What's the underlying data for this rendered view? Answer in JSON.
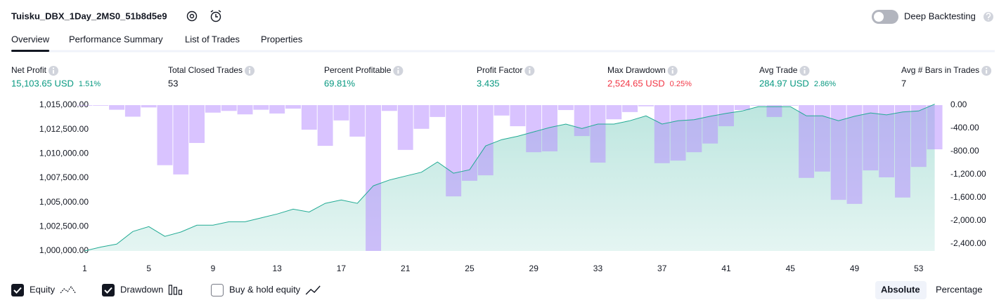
{
  "header": {
    "title": "Tuisku_DBX_1Day_2MS0_51b8d5e9",
    "deep_backtesting": {
      "label": "Deep Backtesting",
      "on": false
    }
  },
  "tabs": {
    "items": [
      "Overview",
      "Performance Summary",
      "List of Trades",
      "Properties"
    ],
    "selected": 0
  },
  "metrics": [
    {
      "label": "Net Profit",
      "value": "15,103.65 USD",
      "percent": "1.51%",
      "tone": "positive"
    },
    {
      "label": "Total Closed Trades",
      "value": "53",
      "tone": "neutral"
    },
    {
      "label": "Percent Profitable",
      "value": "69.81%",
      "tone": "positive"
    },
    {
      "label": "Profit Factor",
      "value": "3.435",
      "tone": "positive"
    },
    {
      "label": "Max Drawdown",
      "value": "2,524.65 USD",
      "percent": "0.25%",
      "tone": "negative"
    },
    {
      "label": "Avg Trade",
      "value": "284.97 USD",
      "percent": "2.86%",
      "tone": "positive"
    },
    {
      "label": "Avg # Bars in Trades",
      "value": "7",
      "tone": "neutral"
    }
  ],
  "chart_data": {
    "type": "equity_drawdown",
    "x": [
      1,
      2,
      3,
      4,
      5,
      6,
      7,
      8,
      9,
      10,
      11,
      12,
      13,
      14,
      15,
      16,
      17,
      18,
      19,
      20,
      21,
      22,
      23,
      24,
      25,
      26,
      27,
      28,
      29,
      30,
      31,
      32,
      33,
      34,
      35,
      36,
      37,
      38,
      39,
      40,
      41,
      42,
      43,
      44,
      45,
      46,
      47,
      48,
      49,
      50,
      51,
      52,
      53,
      54
    ],
    "xlim": [
      0.5,
      54.5
    ],
    "xticks": [
      1,
      5,
      9,
      13,
      17,
      21,
      25,
      29,
      33,
      37,
      41,
      45,
      49,
      53
    ],
    "ylim": [
      1000000,
      1015000
    ],
    "yticks": [
      {
        "value": 1000000,
        "label": "1,000,000.00"
      },
      {
        "value": 1002500,
        "label": "1,002,500.00"
      },
      {
        "value": 1005000,
        "label": "1,005,000.00"
      },
      {
        "value": 1007500,
        "label": "1,007,500.00"
      },
      {
        "value": 1010000,
        "label": "1,010,000.00"
      },
      {
        "value": 1012500,
        "label": "1,012,500.00"
      },
      {
        "value": 1015000,
        "label": "1,015,000.00"
      }
    ],
    "y2lim": [
      -2524.65,
      0
    ],
    "y2ticks": [
      {
        "value": 0,
        "label": "0.00"
      },
      {
        "value": -400,
        "label": "-400.00"
      },
      {
        "value": -800,
        "label": "-800.00"
      },
      {
        "value": -1200,
        "label": "-1,200.00"
      },
      {
        "value": -1600,
        "label": "-1,600.00"
      },
      {
        "value": -2000,
        "label": "-2,000.00"
      },
      {
        "value": -2400,
        "label": "-2,400.00"
      }
    ],
    "grid": false,
    "series": [
      {
        "name": "Equity",
        "type": "area",
        "color": "#22ab94",
        "checked": true,
        "values": [
          1000000,
          1000400,
          1000700,
          1002000,
          1002500,
          1001500,
          1001950,
          1002650,
          1002650,
          1003000,
          1003000,
          1003400,
          1003800,
          1004300,
          1004000,
          1004900,
          1005250,
          1004900,
          1006700,
          1007300,
          1007700,
          1008100,
          1009150,
          1008000,
          1008350,
          1010800,
          1011450,
          1011800,
          1012250,
          1012700,
          1013050,
          1012600,
          1013050,
          1013050,
          1013400,
          1013900,
          1013050,
          1013400,
          1013500,
          1013850,
          1014150,
          1014400,
          1014850,
          1014850,
          1014850,
          1013900,
          1013900,
          1013400,
          1013850,
          1014200,
          1014000,
          1014300,
          1014400,
          1015103.65
        ]
      },
      {
        "name": "Drawdown",
        "type": "bar",
        "axis": "y2",
        "color": "#b388ff",
        "checked": true,
        "values": [
          -10,
          -10,
          -80,
          -200,
          -40,
          -1040,
          -1200,
          -655,
          -130,
          -100,
          -160,
          -80,
          -145,
          -60,
          -425,
          -705,
          -265,
          -545,
          -2524.65,
          -100,
          -775,
          -410,
          -205,
          -1580,
          -1310,
          -1215,
          -180,
          -365,
          -815,
          -800,
          -85,
          -535,
          -995,
          -245,
          -120,
          -20,
          -1005,
          -960,
          -815,
          -665,
          -365,
          -85,
          -10,
          -205,
          -10,
          -1260,
          -1150,
          -1640,
          -1710,
          -1130,
          -1250,
          -1600,
          -1070,
          -765
        ]
      }
    ]
  },
  "footer": {
    "buy_hold": {
      "label": "Buy & hold equity",
      "checked": false
    },
    "modes": [
      "Absolute",
      "Percentage"
    ],
    "selected_mode": 0
  }
}
